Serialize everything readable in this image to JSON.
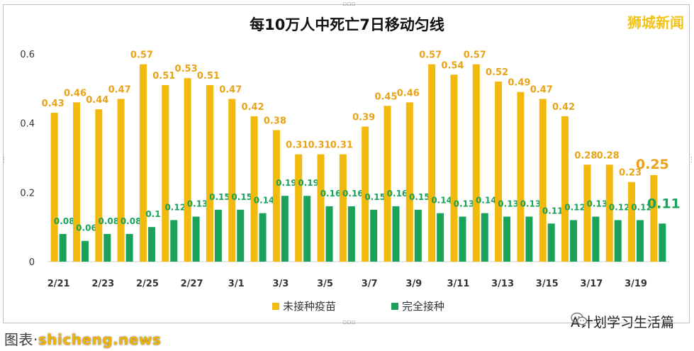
{
  "header": {
    "title": "每10万人中死亡7日移动匀线",
    "watermark": "狮城新闻"
  },
  "footer": {
    "left_prefix": "图表·",
    "site": "shicheng.news",
    "wechat_account": "A计划学习生活篇"
  },
  "colors": {
    "unvaccinated": "#f2b90f",
    "vaccinated": "#1aa15a",
    "unvaccinated_label": "#e8a317",
    "vaccinated_label": "#1aa15a"
  },
  "chart_data": {
    "type": "bar",
    "title": "每10万人中死亡7日移动匀线",
    "categories": [
      "2/21",
      "2/22",
      "2/23",
      "2/24",
      "2/25",
      "2/26",
      "2/27",
      "2/28",
      "3/1",
      "3/2",
      "3/3",
      "3/4",
      "3/5",
      "3/6",
      "3/7",
      "3/8",
      "3/9",
      "3/10",
      "3/11",
      "3/12",
      "3/13",
      "3/14",
      "3/15",
      "3/16",
      "3/17",
      "3/18",
      "3/19",
      "3/20"
    ],
    "tick_labels": [
      "2/21",
      "2/23",
      "2/25",
      "2/27",
      "3/1",
      "3/3",
      "3/5",
      "3/7",
      "3/9",
      "3/11",
      "3/13",
      "3/15",
      "3/17",
      "3/19"
    ],
    "series": [
      {
        "name": "未接种疫苗",
        "values": [
          0.43,
          0.46,
          0.44,
          0.47,
          0.57,
          0.51,
          0.53,
          0.51,
          0.47,
          0.42,
          0.38,
          0.31,
          0.31,
          0.31,
          0.39,
          0.45,
          0.46,
          0.57,
          0.54,
          0.57,
          0.52,
          0.49,
          0.47,
          0.42,
          0.28,
          0.28,
          0.23,
          0.25
        ]
      },
      {
        "name": "完全接种",
        "values": [
          0.08,
          0.06,
          0.08,
          0.08,
          0.1,
          0.12,
          0.13,
          0.15,
          0.15,
          0.14,
          0.19,
          0.19,
          0.16,
          0.16,
          0.15,
          0.16,
          0.15,
          0.14,
          0.13,
          0.14,
          0.13,
          0.13,
          0.11,
          0.12,
          0.13,
          0.12,
          0.12,
          0.11
        ]
      }
    ],
    "y_ticks": [
      "0",
      "0.2",
      "0.4",
      "0.6"
    ],
    "ylim": [
      0,
      0.6
    ],
    "grid": false,
    "legend_position": "bottom-center"
  }
}
